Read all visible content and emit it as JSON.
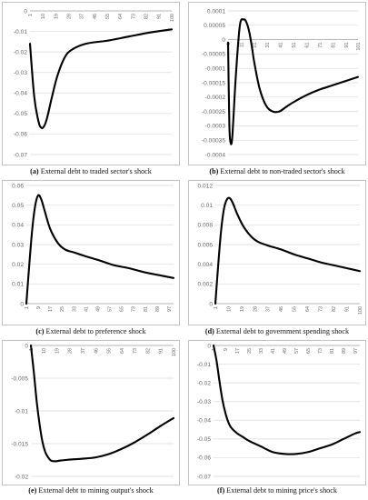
{
  "chart_data": [
    {
      "type": "line",
      "caption_letter": "(a)",
      "caption_text": "External debt to traded sector's shock",
      "ylim": [
        -0.07,
        0
      ],
      "yticks": [
        "0",
        "-0.01",
        "-0.02",
        "-0.03",
        "-0.04",
        "-0.05",
        "-0.06",
        "-0.07"
      ],
      "xticks": [
        "1",
        "10",
        "19",
        "28",
        "37",
        "46",
        "55",
        "64",
        "73",
        "82",
        "91",
        "100"
      ],
      "grid": true,
      "x": [
        1,
        4,
        7,
        9,
        11,
        13,
        16,
        20,
        25,
        30,
        40,
        55,
        70,
        85,
        100
      ],
      "y": [
        -0.016,
        -0.042,
        -0.054,
        -0.057,
        -0.056,
        -0.052,
        -0.043,
        -0.032,
        -0.023,
        -0.019,
        -0.016,
        -0.0145,
        -0.0125,
        -0.0105,
        -0.009
      ]
    },
    {
      "type": "line",
      "caption_letter": "(b)",
      "caption_text": "External debt to non-traded sector's shock",
      "ylim": [
        -0.0004,
        0.0001
      ],
      "yticks": [
        "0.0001",
        "0.00005",
        "0",
        "-0.00005",
        "-0.0001",
        "-0.00015",
        "-0.0002",
        "-0.00025",
        "-0.0003",
        "-0.00035",
        "-0.0004"
      ],
      "xticks": [
        "1",
        "11",
        "21",
        "31",
        "41",
        "51",
        "61",
        "71",
        "81",
        "91",
        "101"
      ],
      "grid": true,
      "x": [
        1,
        2,
        3,
        4,
        5,
        7,
        10,
        13,
        15,
        17,
        19,
        21,
        25,
        30,
        35,
        40,
        45,
        50,
        60,
        70,
        80,
        90,
        101
      ],
      "y": [
        -1e-05,
        -0.0003,
        -0.00036,
        -0.00035,
        -0.00028,
        -0.00012,
        5e-05,
        7e-05,
        6e-05,
        3e-05,
        -2e-05,
        -8e-05,
        -0.00017,
        -0.00023,
        -0.00025,
        -0.00025,
        -0.000235,
        -0.00022,
        -0.000195,
        -0.000175,
        -0.00016,
        -0.000145,
        -0.00013
      ]
    },
    {
      "type": "line",
      "caption_letter": "(c)",
      "caption_text": "External debt to preference shock",
      "ylim": [
        0,
        0.06
      ],
      "yticks": [
        "0.06",
        "0.05",
        "0.04",
        "0.03",
        "0.02",
        "0.01",
        "0"
      ],
      "xticks": [
        "1",
        "9",
        "17",
        "25",
        "33",
        "41",
        "49",
        "57",
        "65",
        "73",
        "81",
        "89",
        "97"
      ],
      "grid": true,
      "x": [
        1,
        3,
        5,
        7,
        9,
        11,
        13,
        17,
        22,
        27,
        33,
        41,
        50,
        60,
        70,
        80,
        90,
        100
      ],
      "y": [
        0,
        0.02,
        0.038,
        0.05,
        0.055,
        0.053,
        0.048,
        0.038,
        0.031,
        0.0275,
        0.026,
        0.024,
        0.022,
        0.0195,
        0.018,
        0.016,
        0.0145,
        0.013
      ]
    },
    {
      "type": "line",
      "caption_letter": "(d)",
      "caption_text": "External debt to government spending shock",
      "ylim": [
        0,
        0.012
      ],
      "yticks": [
        "0.012",
        "0.01",
        "0.008",
        "0.006",
        "0.004",
        "0.002",
        "0"
      ],
      "xticks": [
        "1",
        "10",
        "19",
        "28",
        "37",
        "46",
        "55",
        "64",
        "73",
        "82",
        "91",
        "100"
      ],
      "grid": true,
      "x": [
        1,
        3,
        5,
        7,
        9,
        11,
        13,
        16,
        20,
        25,
        30,
        37,
        46,
        55,
        64,
        73,
        82,
        91,
        100
      ],
      "y": [
        0,
        0.004,
        0.0075,
        0.0097,
        0.0106,
        0.0107,
        0.0102,
        0.0091,
        0.0079,
        0.0069,
        0.0063,
        0.0059,
        0.0055,
        0.005,
        0.0046,
        0.0042,
        0.0039,
        0.0036,
        0.0033
      ]
    },
    {
      "type": "line",
      "caption_letter": "(e)",
      "caption_text": "External debt to mining output's shock",
      "ylim": [
        -0.02,
        0
      ],
      "yticks": [
        "0",
        "-0.005",
        "-0.01",
        "-0.015",
        "-0.02"
      ],
      "xticks": [
        "1",
        "10",
        "19",
        "28",
        "37",
        "46",
        "55",
        "64",
        "73",
        "82",
        "91",
        "100"
      ],
      "grid": true,
      "x": [
        1,
        3,
        5,
        7,
        9,
        11,
        13,
        15,
        18,
        21,
        25,
        30,
        37,
        46,
        55,
        64,
        73,
        82,
        91,
        100
      ],
      "y": [
        0,
        -0.004,
        -0.0085,
        -0.012,
        -0.0147,
        -0.0163,
        -0.0171,
        -0.0176,
        -0.0177,
        -0.0176,
        -0.0175,
        -0.0174,
        -0.0173,
        -0.0171,
        -0.0166,
        -0.0158,
        -0.0148,
        -0.0136,
        -0.0123,
        -0.0111
      ]
    },
    {
      "type": "line",
      "caption_letter": "(f)",
      "caption_text": "External debt to mining price's shock",
      "ylim": [
        -0.07,
        0
      ],
      "yticks": [
        "0",
        "-0.01",
        "-0.02",
        "-0.03",
        "-0.04",
        "-0.05",
        "-0.06",
        "-0.07"
      ],
      "xticks": [
        "1",
        "9",
        "17",
        "25",
        "33",
        "41",
        "49",
        "57",
        "65",
        "73",
        "81",
        "89",
        "97"
      ],
      "grid": true,
      "x": [
        1,
        3,
        5,
        7,
        9,
        11,
        13,
        17,
        21,
        25,
        33,
        41,
        49,
        57,
        65,
        73,
        81,
        89,
        97,
        100
      ],
      "y": [
        0,
        -0.008,
        -0.019,
        -0.029,
        -0.036,
        -0.041,
        -0.044,
        -0.047,
        -0.049,
        -0.051,
        -0.054,
        -0.057,
        -0.058,
        -0.058,
        -0.057,
        -0.055,
        -0.053,
        -0.05,
        -0.047,
        -0.0463
      ]
    }
  ]
}
